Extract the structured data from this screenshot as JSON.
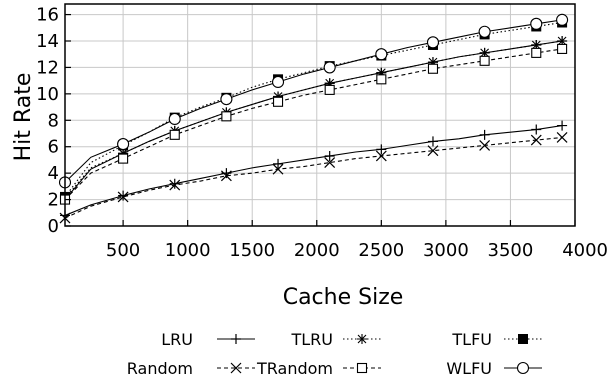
{
  "chart_data": {
    "type": "line",
    "xlabel": "Cache Size",
    "ylabel": "Hit Rate",
    "xlim": [
      50,
      4000
    ],
    "ylim": [
      0,
      16.8
    ],
    "x_ticks": [
      500,
      1000,
      1500,
      2000,
      2500,
      3000,
      3500,
      4000
    ],
    "y_ticks": [
      0,
      2,
      4,
      6,
      8,
      10,
      12,
      14,
      16
    ],
    "grid": true,
    "legend_position": "bottom",
    "x": [
      50,
      250,
      500,
      700,
      900,
      1100,
      1300,
      1500,
      1700,
      1900,
      2100,
      2300,
      2500,
      2700,
      2900,
      3100,
      3300,
      3500,
      3700,
      3900
    ],
    "series": [
      {
        "name": "LRU",
        "marker": "plus",
        "dash": "solid",
        "values": [
          2.0,
          4.3,
          5.5,
          6.4,
          7.2,
          7.9,
          8.6,
          9.2,
          9.8,
          10.3,
          10.8,
          11.2,
          11.6,
          12.0,
          12.4,
          12.8,
          13.1,
          13.4,
          13.7,
          14.0
        ]
      },
      {
        "name": "TLRU",
        "marker": "asterisk",
        "dash": "dotted",
        "values": [
          2.1,
          4.4,
          5.5,
          6.4,
          7.2,
          7.9,
          8.6,
          9.2,
          9.8,
          10.3,
          10.8,
          11.2,
          11.6,
          12.0,
          12.4,
          12.8,
          13.1,
          13.4,
          13.7,
          14.0
        ]
      },
      {
        "name": "TLFU",
        "marker": "filled-square",
        "dash": "dotted",
        "values": [
          2.2,
          4.8,
          6.1,
          7.1,
          8.2,
          9.0,
          9.7,
          10.5,
          11.1,
          11.6,
          12.1,
          12.5,
          12.9,
          13.3,
          13.7,
          14.1,
          14.5,
          14.8,
          15.1,
          15.4
        ]
      },
      {
        "name": "Random",
        "marker": "cross",
        "dash": "dashed",
        "values": [
          0.6,
          1.5,
          2.2,
          2.7,
          3.1,
          3.4,
          3.8,
          4.0,
          4.3,
          4.5,
          4.8,
          5.1,
          5.3,
          5.5,
          5.7,
          5.9,
          6.1,
          6.3,
          6.5,
          6.7
        ]
      },
      {
        "name": "TRandom",
        "marker": "open-square",
        "dash": "dashed",
        "values": [
          2.0,
          4.0,
          5.1,
          6.0,
          6.9,
          7.6,
          8.3,
          8.9,
          9.4,
          9.9,
          10.3,
          10.7,
          11.1,
          11.5,
          11.9,
          12.2,
          12.5,
          12.8,
          13.1,
          13.4
        ]
      },
      {
        "name": "WLFU",
        "marker": "open-circle",
        "dash": "solid",
        "values": [
          3.3,
          5.2,
          6.2,
          7.1,
          8.1,
          8.9,
          9.6,
          10.3,
          10.9,
          11.5,
          12.0,
          12.5,
          13.0,
          13.5,
          13.9,
          14.3,
          14.7,
          15.0,
          15.3,
          15.6
        ]
      },
      {
        "name": "",
        "marker": "plus",
        "dash": "solid",
        "values": [
          0.8,
          1.6,
          2.3,
          2.8,
          3.2,
          3.6,
          4.0,
          4.4,
          4.7,
          5.0,
          5.3,
          5.6,
          5.8,
          6.1,
          6.4,
          6.6,
          6.9,
          7.1,
          7.3,
          7.6
        ]
      }
    ],
    "legend": [
      {
        "label": "LRU",
        "series": 0
      },
      {
        "label": "TLRU",
        "series": 1
      },
      {
        "label": "TLFU",
        "series": 2
      },
      {
        "label": "Random",
        "series": 3
      },
      {
        "label": "TRandom",
        "series": 4
      },
      {
        "label": "WLFU",
        "series": 5
      }
    ]
  }
}
